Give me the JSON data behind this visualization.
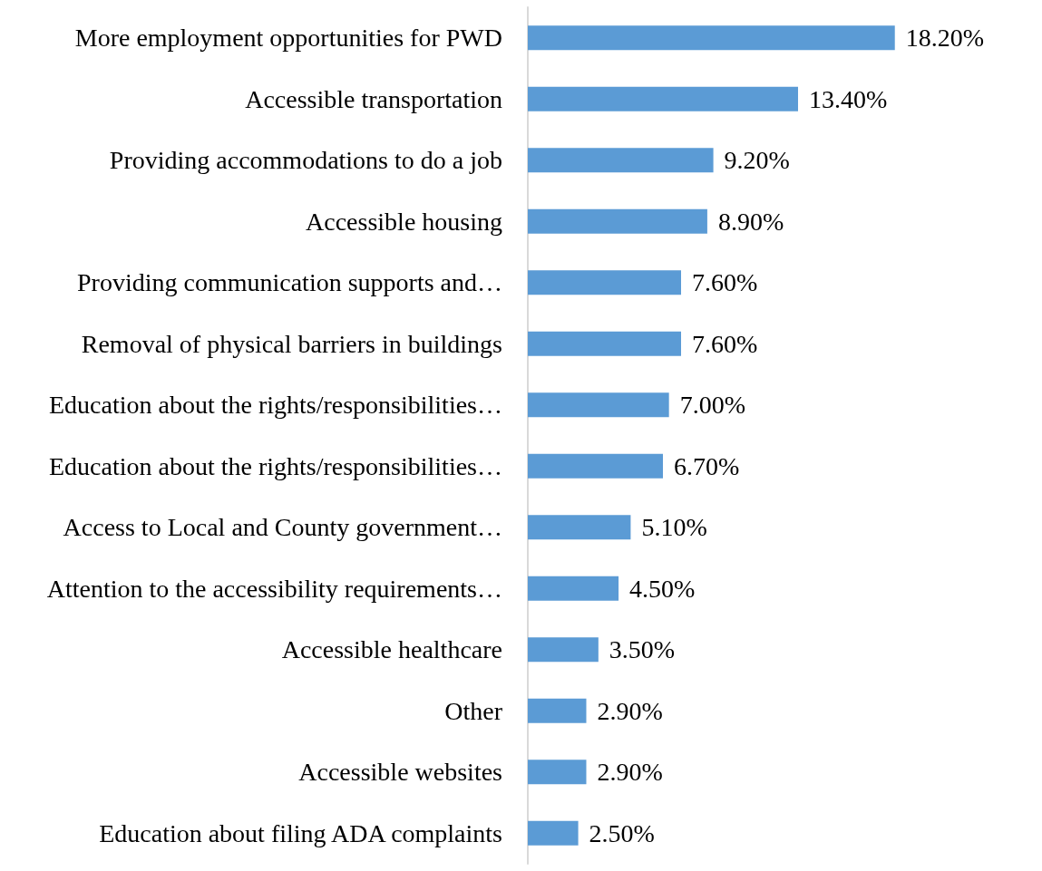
{
  "chart_data": {
    "type": "bar",
    "orientation": "horizontal",
    "categories": [
      "More employment opportunities for PWD",
      "Accessible transportation",
      "Providing accommodations to do a job",
      "Accessible housing",
      "Providing communication supports and…",
      "Removal of physical barriers in buildings",
      "Education about the rights/responsibilities…",
      "Education about the rights/responsibilities…",
      "Access to Local and County government…",
      "Attention to the accessibility requirements…",
      "Accessible healthcare",
      "Other",
      "Accessible websites",
      "Education about filing ADA complaints"
    ],
    "values": [
      18.2,
      13.4,
      9.2,
      8.9,
      7.6,
      7.6,
      7.0,
      6.7,
      5.1,
      4.5,
      3.5,
      2.9,
      2.9,
      2.5
    ],
    "value_labels": [
      "18.20%",
      "13.40%",
      "9.20%",
      "8.90%",
      "7.60%",
      "7.60%",
      "7.00%",
      "6.70%",
      "5.10%",
      "4.50%",
      "3.50%",
      "2.90%",
      "2.90%",
      "2.50%"
    ],
    "color": "#5b9bd5"
  }
}
